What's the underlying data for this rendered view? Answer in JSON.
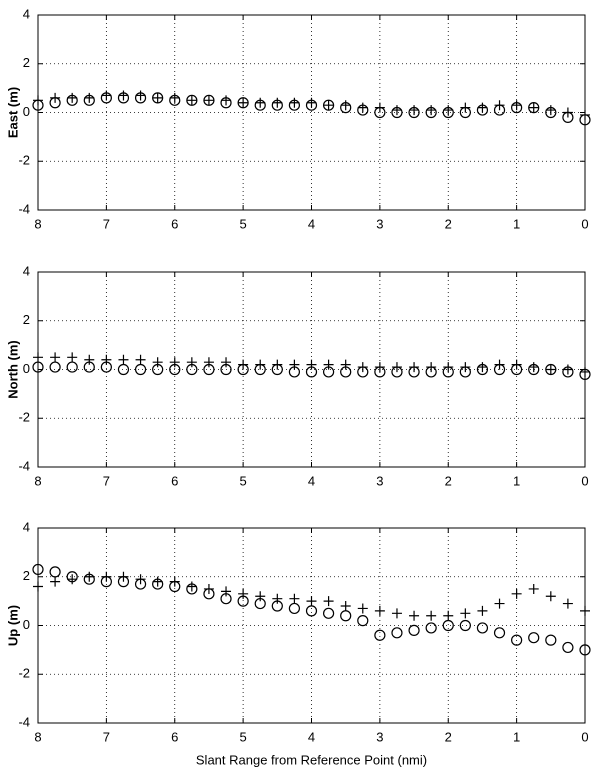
{
  "chart_data": [
    {
      "type": "scatter",
      "ylabel": "East (m)",
      "x": [
        8,
        7.75,
        7.5,
        7.25,
        7,
        6.75,
        6.5,
        6.25,
        6,
        5.75,
        5.5,
        5.25,
        5,
        4.75,
        4.5,
        4.25,
        4,
        3.75,
        3.5,
        3.25,
        3,
        2.75,
        2.5,
        2.25,
        2,
        1.75,
        1.5,
        1.25,
        1,
        0.75,
        0.5,
        0.25,
        0
      ],
      "xlim": [
        8,
        0
      ],
      "ylim": [
        -4,
        4
      ],
      "xticks": [
        8,
        7,
        6,
        5,
        4,
        3,
        2,
        1,
        0
      ],
      "yticks": [
        -4,
        -2,
        0,
        2,
        4
      ],
      "grid": true,
      "series": [
        {
          "marker": "circle",
          "color": "#000000",
          "values": [
            0.3,
            0.4,
            0.5,
            0.5,
            0.6,
            0.6,
            0.6,
            0.6,
            0.5,
            0.5,
            0.5,
            0.4,
            0.4,
            0.3,
            0.3,
            0.3,
            0.3,
            0.3,
            0.2,
            0.1,
            0.0,
            0.0,
            0.0,
            0.0,
            0.0,
            0.0,
            0.1,
            0.1,
            0.2,
            0.2,
            0.0,
            -0.2,
            -0.3
          ]
        },
        {
          "marker": "plus",
          "color": "#000000",
          "values": [
            0.5,
            0.6,
            0.6,
            0.6,
            0.7,
            0.7,
            0.7,
            0.6,
            0.6,
            0.5,
            0.5,
            0.5,
            0.4,
            0.4,
            0.4,
            0.4,
            0.4,
            0.3,
            0.3,
            0.2,
            0.2,
            0.1,
            0.1,
            0.1,
            0.1,
            0.2,
            0.2,
            0.3,
            0.3,
            0.2,
            0.1,
            0.0,
            -0.1
          ]
        }
      ]
    },
    {
      "type": "scatter",
      "ylabel": "North (m)",
      "x": [
        8,
        7.75,
        7.5,
        7.25,
        7,
        6.75,
        6.5,
        6.25,
        6,
        5.75,
        5.5,
        5.25,
        5,
        4.75,
        4.5,
        4.25,
        4,
        3.75,
        3.5,
        3.25,
        3,
        2.75,
        2.5,
        2.25,
        2,
        1.75,
        1.5,
        1.25,
        1,
        0.75,
        0.5,
        0.25,
        0
      ],
      "xlim": [
        8,
        0
      ],
      "ylim": [
        -4,
        4
      ],
      "xticks": [
        8,
        7,
        6,
        5,
        4,
        3,
        2,
        1,
        0
      ],
      "yticks": [
        -4,
        -2,
        0,
        2,
        4
      ],
      "grid": true,
      "series": [
        {
          "marker": "circle",
          "color": "#000000",
          "values": [
            0.1,
            0.1,
            0.1,
            0.1,
            0.1,
            0.0,
            0.0,
            0.0,
            0.0,
            0.0,
            0.0,
            0.0,
            0.0,
            0.0,
            0.0,
            -0.1,
            -0.1,
            -0.1,
            -0.1,
            -0.1,
            -0.1,
            -0.1,
            -0.1,
            -0.1,
            -0.1,
            -0.1,
            0.0,
            0.0,
            0.0,
            0.0,
            0.0,
            -0.1,
            -0.2
          ]
        },
        {
          "marker": "plus",
          "color": "#000000",
          "values": [
            0.5,
            0.5,
            0.5,
            0.4,
            0.4,
            0.4,
            0.4,
            0.3,
            0.3,
            0.3,
            0.3,
            0.3,
            0.2,
            0.2,
            0.2,
            0.2,
            0.2,
            0.2,
            0.2,
            0.1,
            0.1,
            0.1,
            0.1,
            0.1,
            0.1,
            0.1,
            0.1,
            0.2,
            0.2,
            0.1,
            0.0,
            0.0,
            -0.1
          ]
        }
      ]
    },
    {
      "type": "scatter",
      "ylabel": "Up (m)",
      "xlabel": "Slant Range from Reference Point (nmi)",
      "x": [
        8,
        7.75,
        7.5,
        7.25,
        7,
        6.75,
        6.5,
        6.25,
        6,
        5.75,
        5.5,
        5.25,
        5,
        4.75,
        4.5,
        4.25,
        4,
        3.75,
        3.5,
        3.25,
        3,
        2.75,
        2.5,
        2.25,
        2,
        1.75,
        1.5,
        1.25,
        1,
        0.75,
        0.5,
        0.25,
        0
      ],
      "xlim": [
        8,
        0
      ],
      "ylim": [
        -4,
        4
      ],
      "xticks": [
        8,
        7,
        6,
        5,
        4,
        3,
        2,
        1,
        0
      ],
      "yticks": [
        -4,
        -2,
        0,
        2,
        4
      ],
      "grid": true,
      "series": [
        {
          "marker": "circle",
          "color": "#000000",
          "values": [
            2.3,
            2.2,
            2.0,
            1.9,
            1.8,
            1.8,
            1.7,
            1.7,
            1.6,
            1.5,
            1.3,
            1.1,
            1.0,
            0.9,
            0.8,
            0.7,
            0.6,
            0.5,
            0.4,
            0.2,
            -0.4,
            -0.3,
            -0.2,
            -0.1,
            0.0,
            0.0,
            -0.1,
            -0.3,
            -0.6,
            -0.5,
            -0.6,
            -0.9,
            -1.0
          ]
        },
        {
          "marker": "plus",
          "color": "#000000",
          "values": [
            1.6,
            1.8,
            1.9,
            2.0,
            2.0,
            2.0,
            1.9,
            1.8,
            1.8,
            1.6,
            1.5,
            1.4,
            1.3,
            1.2,
            1.1,
            1.1,
            1.0,
            1.0,
            0.8,
            0.7,
            0.6,
            0.5,
            0.4,
            0.4,
            0.4,
            0.5,
            0.6,
            0.9,
            1.3,
            1.5,
            1.2,
            0.9,
            0.6
          ]
        }
      ]
    }
  ]
}
